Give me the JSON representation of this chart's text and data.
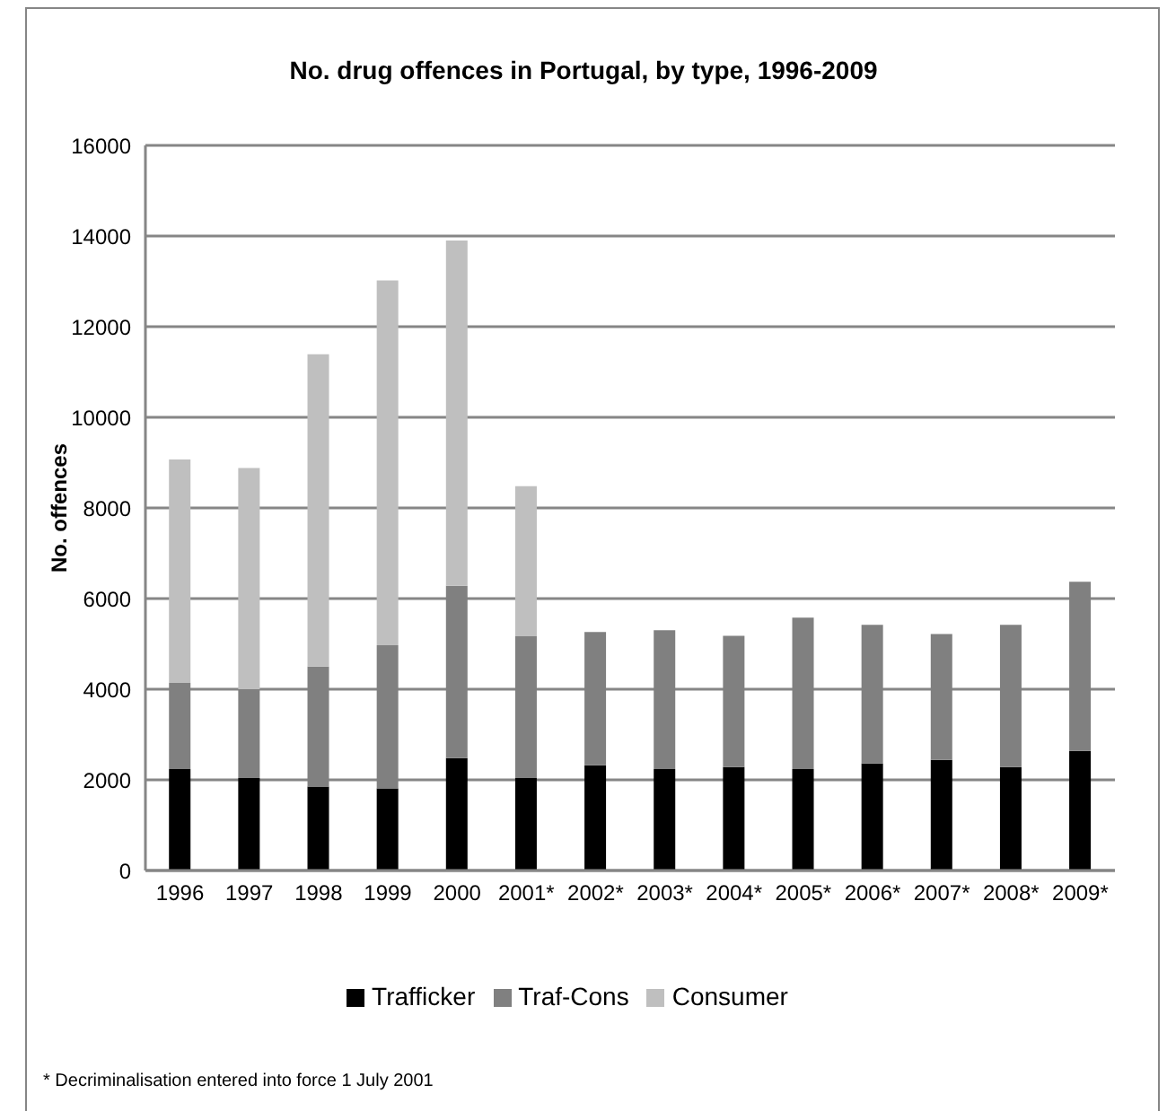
{
  "chart_data": {
    "type": "bar",
    "title": "No. drug offences in Portugal, by type, 1996-2009",
    "ylabel": "No. offences",
    "categories": [
      "1996",
      "1997",
      "1998",
      "1999",
      "2000",
      "2001*",
      "2002*",
      "2003*",
      "2004*",
      "2005*",
      "2006*",
      "2007*",
      "2008*",
      "2009*"
    ],
    "stacked": true,
    "series": [
      {
        "name": "Trafficker",
        "color": "#000000",
        "values": [
          2240,
          2040,
          1850,
          1810,
          2480,
          2040,
          2320,
          2240,
          2280,
          2240,
          2360,
          2440,
          2280,
          2640
        ]
      },
      {
        "name": "Traf-Cons",
        "color": "#808080",
        "values": [
          1900,
          1960,
          2650,
          3160,
          3800,
          3130,
          2940,
          3060,
          2900,
          3340,
          3060,
          2780,
          3140,
          3730
        ]
      },
      {
        "name": "Consumer",
        "color": "#bfbfbf",
        "values": [
          4930,
          4880,
          6890,
          8050,
          7620,
          3310,
          null,
          null,
          null,
          null,
          null,
          null,
          null,
          null
        ]
      }
    ],
    "ylim": [
      0,
      16000
    ],
    "yticks": [
      0,
      2000,
      4000,
      6000,
      8000,
      10000,
      12000,
      14000,
      16000
    ],
    "grid": "y",
    "legend": "bottom",
    "annotations": [
      "* Decriminalisation entered into force 1 July 2001"
    ]
  }
}
